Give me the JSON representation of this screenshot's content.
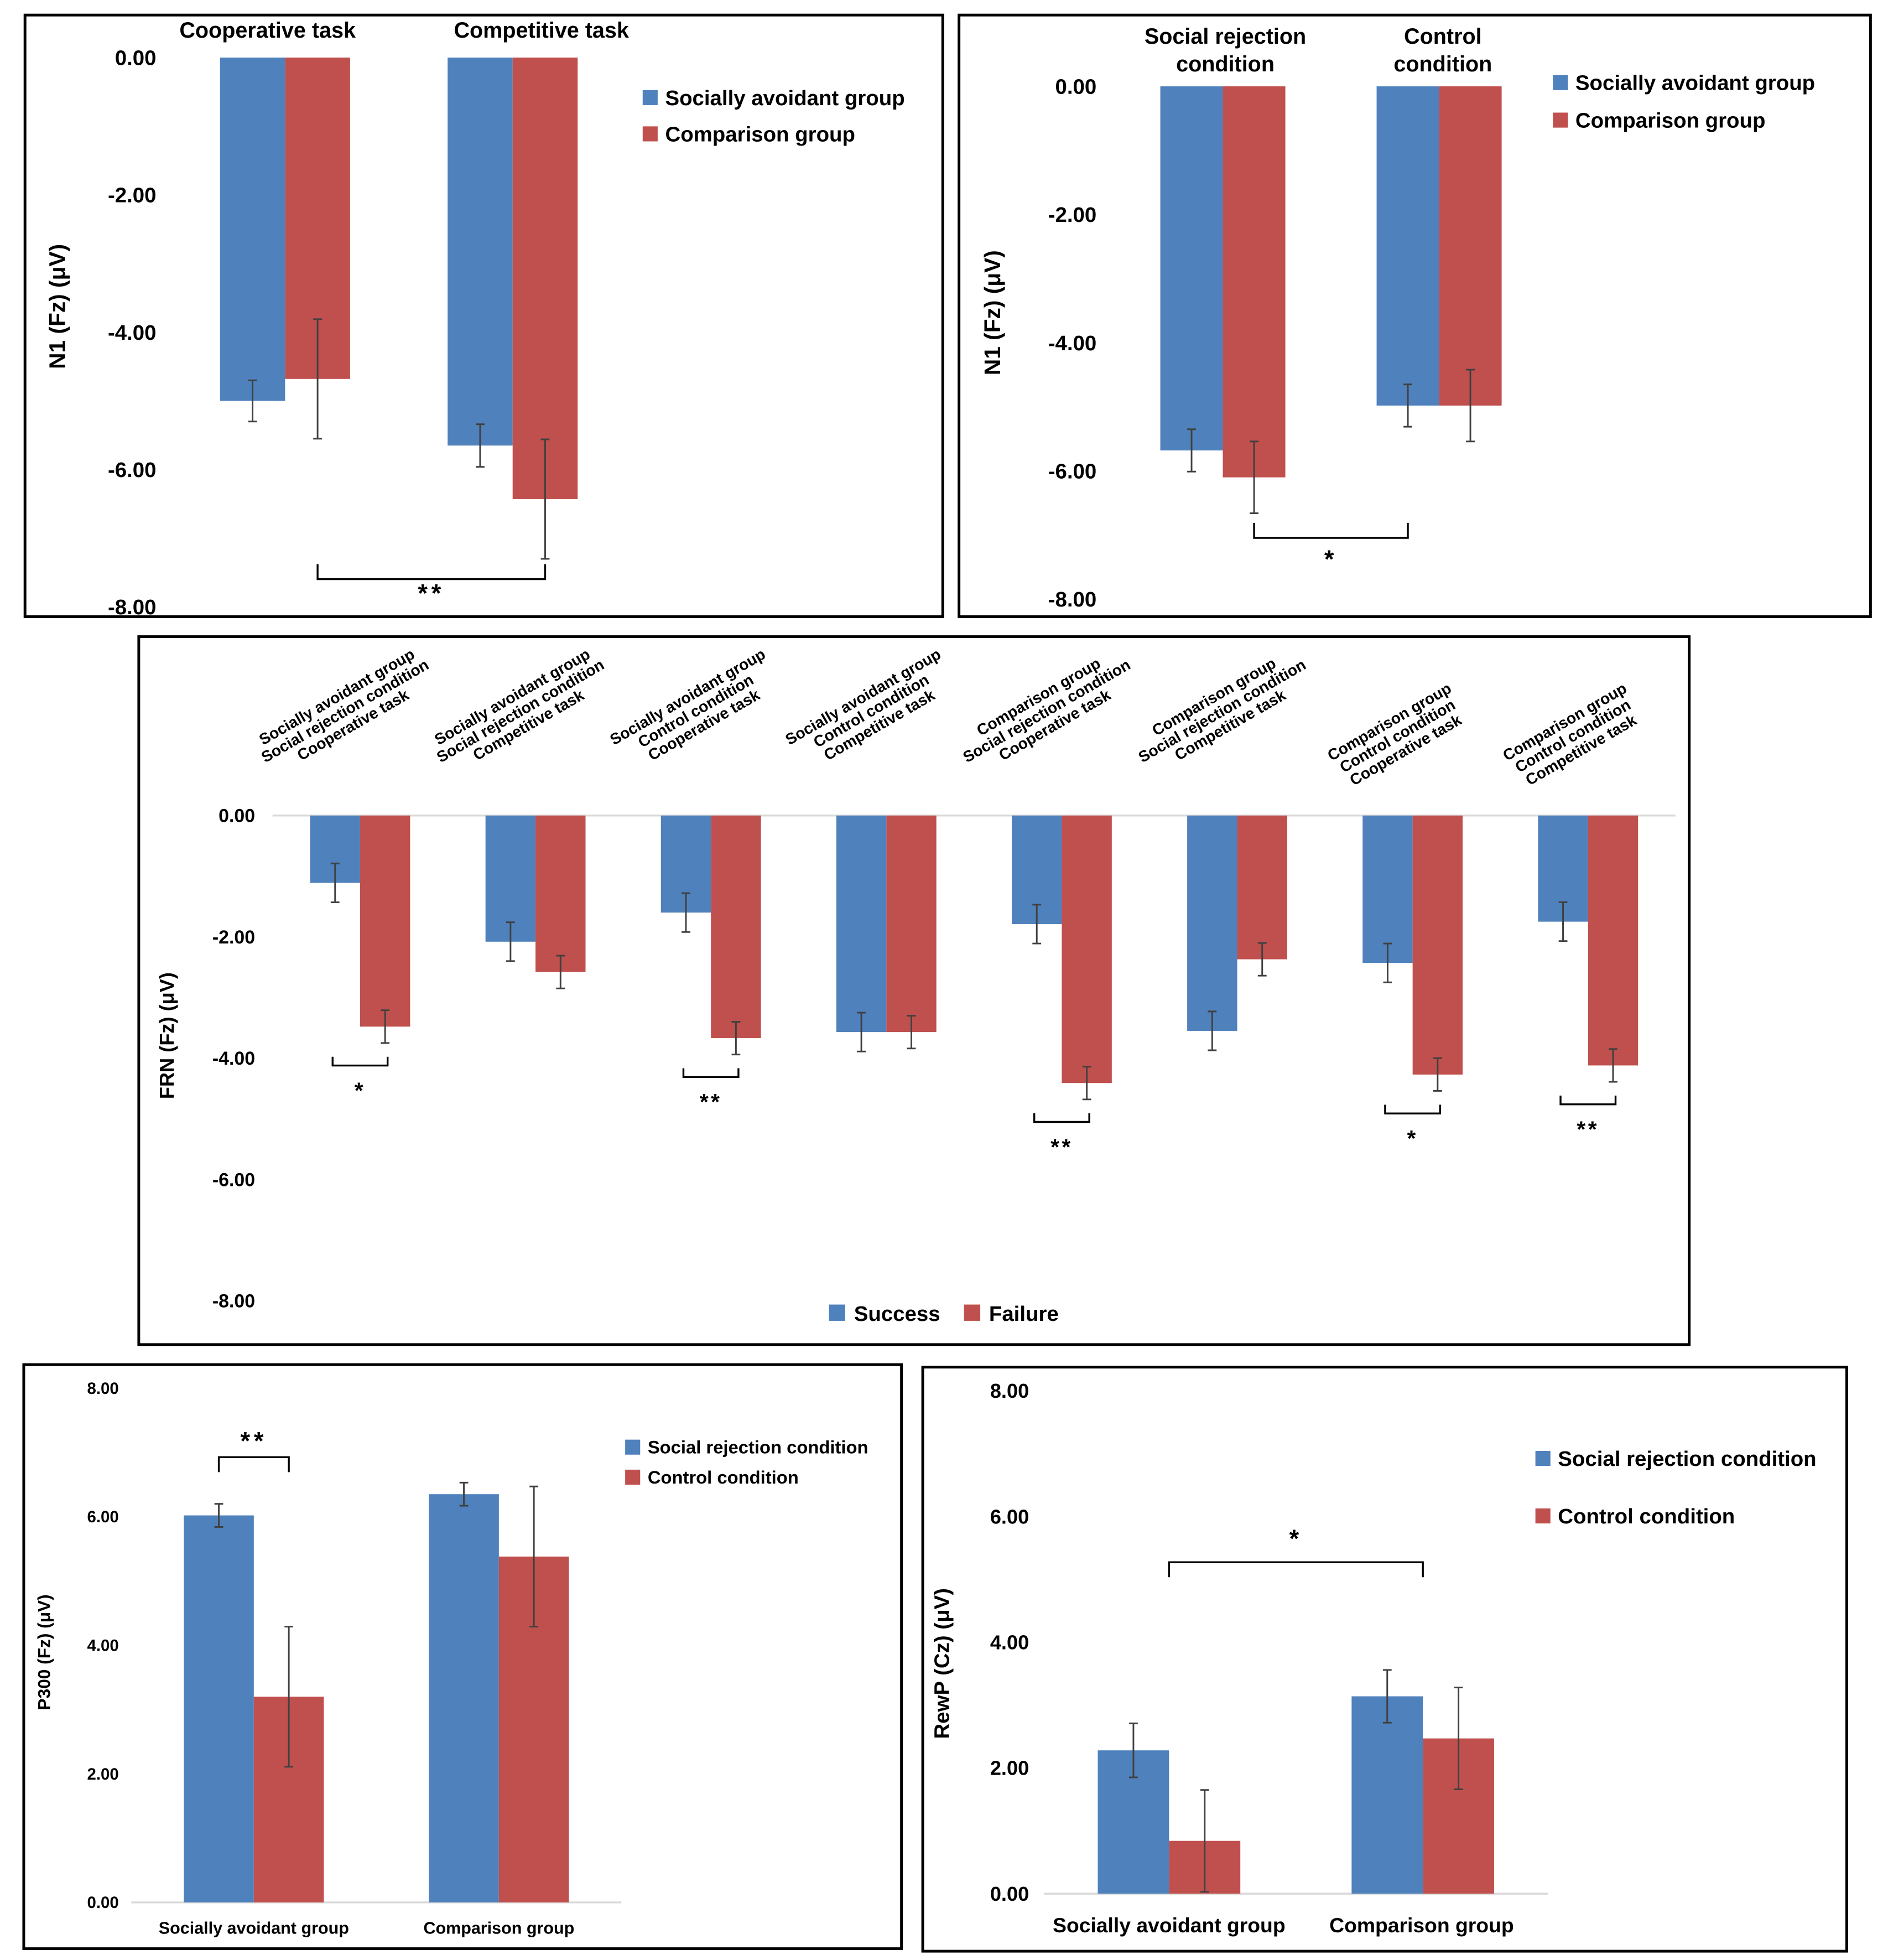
{
  "colors": {
    "blue": "#4F81BD",
    "red": "#C0504D",
    "frame": "#000000",
    "error": "#404040",
    "grid": "#D9D9D9"
  },
  "chart_data": [
    {
      "id": "n1-task",
      "type": "bar",
      "ylabel": "N1 (Fz)  (μV)",
      "ylim": [
        -8,
        0
      ],
      "ticks": [
        0,
        -2,
        -4,
        -6,
        -8
      ],
      "tick_labels": [
        "0.00",
        "-2.00",
        "-4.00",
        "-6.00",
        "-8.00"
      ],
      "categories": [
        [
          "Cooperative task"
        ],
        [
          "Competitive task"
        ]
      ],
      "series": [
        {
          "name": "Socially avoidant group",
          "color": "#4F81BD",
          "values": [
            -5.0,
            -5.65
          ],
          "errors": [
            0.3,
            0.31
          ]
        },
        {
          "name": "Comparison group",
          "color": "#C0504D",
          "values": [
            -4.68,
            -6.43
          ],
          "errors": [
            0.87,
            0.87
          ]
        }
      ],
      "legend": "top-right",
      "annotations": [
        {
          "label": "**",
          "from": [
            0,
            1
          ],
          "to": [
            1,
            1
          ]
        }
      ]
    },
    {
      "id": "n1-condition",
      "type": "bar",
      "ylabel": "N1 (Fz)  (μV)",
      "ylim": [
        -8,
        0
      ],
      "ticks": [
        0,
        -2,
        -4,
        -6,
        -8
      ],
      "tick_labels": [
        "0.00",
        "-2.00",
        "-4.00",
        "-6.00",
        "-8.00"
      ],
      "categories": [
        [
          "Social rejection",
          "condition"
        ],
        [
          "Control",
          "condition"
        ]
      ],
      "series": [
        {
          "name": "Socially avoidant group",
          "color": "#4F81BD",
          "values": [
            -5.68,
            -4.98
          ],
          "errors": [
            0.33,
            0.33
          ]
        },
        {
          "name": "Comparison group",
          "color": "#C0504D",
          "values": [
            -6.1,
            -4.98
          ],
          "errors": [
            0.56,
            0.56
          ]
        }
      ],
      "legend": "top-right",
      "annotations": [
        {
          "label": "*",
          "from": [
            0,
            1
          ],
          "to": [
            1,
            0
          ]
        }
      ]
    },
    {
      "id": "frn",
      "type": "bar",
      "ylabel": "FRN (Fz)  (μV)",
      "ylim": [
        -8,
        0
      ],
      "ticks": [
        0,
        -2,
        -4,
        -6,
        -8
      ],
      "tick_labels": [
        "0.00",
        "-2.00",
        "-4.00",
        "-6.00",
        "-8.00"
      ],
      "categories": [
        [
          "Socially avoidant group",
          "Social rejection condition",
          "Cooperative task"
        ],
        [
          "Socially avoidant group",
          "Social rejection condition",
          "Competitive task"
        ],
        [
          "Socially avoidant group",
          "Control condition",
          "Cooperative task"
        ],
        [
          "Socially avoidant group",
          "Control condition",
          "Competitive task"
        ],
        [
          "Comparison group",
          "Social rejection condition",
          "Cooperative task"
        ],
        [
          "Comparison group",
          "Social rejection condition",
          "Competitive task"
        ],
        [
          "Comparison group",
          "Control condition",
          "Cooperative task"
        ],
        [
          "Comparison group",
          "Control condition",
          "Competitive task"
        ]
      ],
      "series": [
        {
          "name": "Success",
          "color": "#4F81BD",
          "values": [
            -1.11,
            -2.08,
            -1.6,
            -3.57,
            -1.79,
            -3.55,
            -2.43,
            -1.75
          ],
          "errors": [
            0.32,
            0.32,
            0.32,
            0.32,
            0.32,
            0.32,
            0.32,
            0.32
          ]
        },
        {
          "name": "Failure",
          "color": "#C0504D",
          "values": [
            -3.48,
            -2.58,
            -3.67,
            -3.57,
            -4.41,
            -2.37,
            -4.27,
            -4.12
          ],
          "errors": [
            0.27,
            0.27,
            0.27,
            0.27,
            0.27,
            0.27,
            0.27,
            0.27
          ]
        }
      ],
      "legend": "bottom",
      "significance": [
        "*",
        "",
        "**",
        "",
        "**",
        "",
        "*",
        "**"
      ]
    },
    {
      "id": "p300",
      "type": "bar",
      "ylabel": "P300 (Fz)  (μV)",
      "ylim": [
        0,
        8
      ],
      "ticks": [
        8,
        6,
        4,
        2,
        0
      ],
      "tick_labels": [
        "8.00",
        "6.00",
        "4.00",
        "2.00",
        "0.00"
      ],
      "categories": [
        [
          "Socially avoidant group"
        ],
        [
          "Comparison group"
        ]
      ],
      "series": [
        {
          "name": "Social rejection condition",
          "color": "#4F81BD",
          "values": [
            6.02,
            6.35
          ],
          "errors": [
            0.18,
            0.18
          ]
        },
        {
          "name": "Control condition",
          "color": "#C0504D",
          "values": [
            3.2,
            5.38
          ],
          "errors": [
            1.09,
            1.09
          ]
        }
      ],
      "legend": "top-right",
      "annotations": [
        {
          "label": "**",
          "from": [
            0,
            0
          ],
          "to": [
            0,
            1
          ]
        }
      ]
    },
    {
      "id": "rewp",
      "type": "bar",
      "ylabel": "RewP (Cz)  (μV)",
      "ylim": [
        0,
        8
      ],
      "ticks": [
        8,
        6,
        4,
        2,
        0
      ],
      "tick_labels": [
        "8.00",
        "6.00",
        "4.00",
        "2.00",
        "0.00"
      ],
      "categories": [
        [
          "Socially avoidant group"
        ],
        [
          "Comparison group"
        ]
      ],
      "series": [
        {
          "name": "Social rejection condition",
          "color": "#4F81BD",
          "values": [
            2.28,
            3.14
          ],
          "errors": [
            0.43,
            0.42
          ]
        },
        {
          "name": "Control condition",
          "color": "#C0504D",
          "values": [
            0.84,
            2.47
          ],
          "errors": [
            0.81,
            0.81
          ]
        }
      ],
      "legend": "top-right",
      "annotations": [
        {
          "label": "*",
          "from": [
            0,
            -1
          ],
          "to": [
            1,
            -1
          ]
        }
      ]
    }
  ]
}
